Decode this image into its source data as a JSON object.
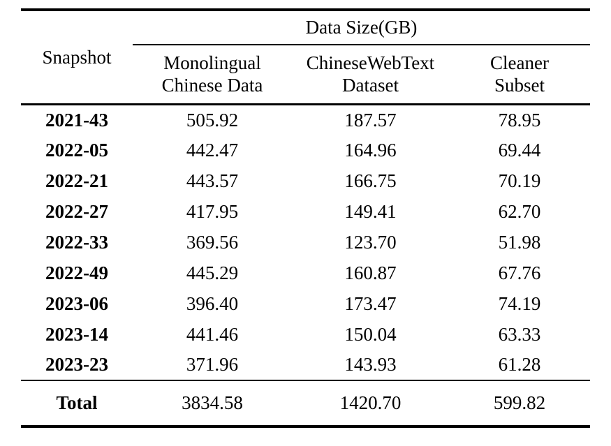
{
  "table": {
    "group_header": "Data Size(GB)",
    "corner_header": "Snapshot",
    "columns": [
      {
        "line1": "Monolingual",
        "line2": "Chinese Data"
      },
      {
        "line1": "ChineseWebText",
        "line2": "Dataset"
      },
      {
        "line1": "Cleaner",
        "line2": "Subset"
      }
    ],
    "rows": [
      {
        "snapshot": "2021-43",
        "values": [
          "505.92",
          "187.57",
          "78.95"
        ]
      },
      {
        "snapshot": "2022-05",
        "values": [
          "442.47",
          "164.96",
          "69.44"
        ]
      },
      {
        "snapshot": "2022-21",
        "values": [
          "443.57",
          "166.75",
          "70.19"
        ]
      },
      {
        "snapshot": "2022-27",
        "values": [
          "417.95",
          "149.41",
          "62.70"
        ]
      },
      {
        "snapshot": "2022-33",
        "values": [
          "369.56",
          "123.70",
          "51.98"
        ]
      },
      {
        "snapshot": "2022-49",
        "values": [
          "445.29",
          "160.87",
          "67.76"
        ]
      },
      {
        "snapshot": "2023-06",
        "values": [
          "396.40",
          "173.47",
          "74.19"
        ]
      },
      {
        "snapshot": "2023-14",
        "values": [
          "441.46",
          "150.04",
          "63.33"
        ]
      },
      {
        "snapshot": "2023-23",
        "values": [
          "371.96",
          "143.93",
          "61.28"
        ]
      }
    ],
    "total": {
      "label": "Total",
      "values": [
        "3834.58",
        "1420.70",
        "599.82"
      ]
    }
  },
  "colors": {
    "text": "#000000",
    "rule": "#000000",
    "background": "#ffffff"
  }
}
